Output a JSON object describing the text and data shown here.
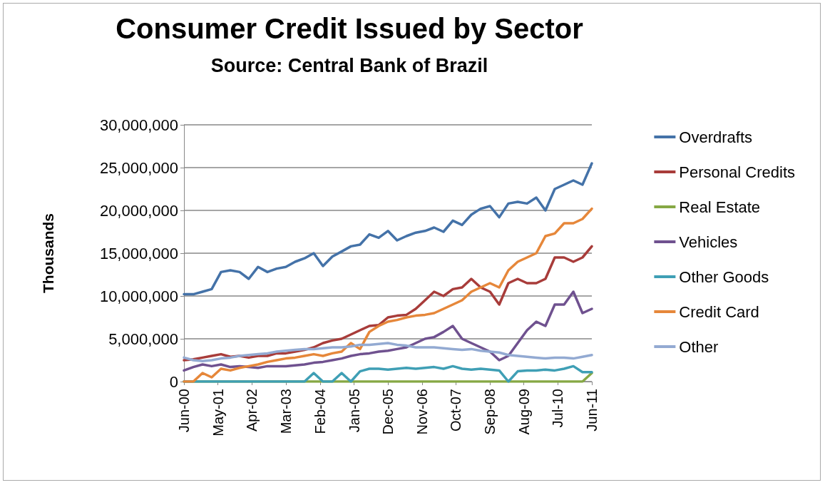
{
  "chart_data": {
    "type": "line",
    "title": "Consumer Credit Issued by Sector",
    "subtitle": "Source: Central Bank of Brazil",
    "ylabel": "Thousands",
    "x": [
      "2000-06",
      "2000-09",
      "2000-12",
      "2001-03",
      "2001-06",
      "2001-09",
      "2001-12",
      "2002-03",
      "2002-06",
      "2002-09",
      "2002-12",
      "2003-03",
      "2003-06",
      "2003-09",
      "2003-12",
      "2004-03",
      "2004-06",
      "2004-09",
      "2004-12",
      "2005-03",
      "2005-06",
      "2005-09",
      "2005-12",
      "2006-03",
      "2006-06",
      "2006-09",
      "2006-12",
      "2007-03",
      "2007-06",
      "2007-09",
      "2007-12",
      "2008-03",
      "2008-06",
      "2008-09",
      "2008-12",
      "2009-03",
      "2009-06",
      "2009-09",
      "2009-12",
      "2010-03",
      "2010-06",
      "2010-09",
      "2010-12",
      "2011-03",
      "2011-06"
    ],
    "xlim": [
      "2000-06",
      "2011-06"
    ],
    "xticks": [
      {
        "value": "2000-06",
        "label": "Jun-00"
      },
      {
        "value": "2001-05",
        "label": "May-01"
      },
      {
        "value": "2002-04",
        "label": "Apr-02"
      },
      {
        "value": "2003-03",
        "label": "Mar-03"
      },
      {
        "value": "2004-02",
        "label": "Feb-04"
      },
      {
        "value": "2005-01",
        "label": "Jan-05"
      },
      {
        "value": "2005-12",
        "label": "Dec-05"
      },
      {
        "value": "2006-11",
        "label": "Nov-06"
      },
      {
        "value": "2007-10",
        "label": "Oct-07"
      },
      {
        "value": "2008-09",
        "label": "Sep-08"
      },
      {
        "value": "2009-08",
        "label": "Aug-09"
      },
      {
        "value": "2010-07",
        "label": "Jul-10"
      },
      {
        "value": "2011-06",
        "label": "Jun-11"
      }
    ],
    "ylim": [
      0,
      30000000
    ],
    "yticks": [
      {
        "value": 0,
        "label": "0"
      },
      {
        "value": 5000000,
        "label": "5,000,000"
      },
      {
        "value": 10000000,
        "label": "10,000,000"
      },
      {
        "value": 15000000,
        "label": "15,000,000"
      },
      {
        "value": 20000000,
        "label": "20,000,000"
      },
      {
        "value": 25000000,
        "label": "25,000,000"
      },
      {
        "value": 30000000,
        "label": "30,000,000"
      }
    ],
    "grid": "y",
    "legend": "right",
    "marker": "none",
    "line_style": "solid",
    "series": [
      {
        "name": "Overdrafts",
        "color": "#4472a8",
        "values": [
          10200000,
          10200000,
          10500000,
          10800000,
          12800000,
          13000000,
          12800000,
          12000000,
          13400000,
          12800000,
          13200000,
          13400000,
          14000000,
          14400000,
          15000000,
          13500000,
          14600000,
          15200000,
          15800000,
          16000000,
          17200000,
          16800000,
          17600000,
          16500000,
          17000000,
          17400000,
          17600000,
          18000000,
          17500000,
          18800000,
          18300000,
          19500000,
          20200000,
          20500000,
          19200000,
          20800000,
          21000000,
          20800000,
          21500000,
          20000000,
          22500000,
          23000000,
          23500000,
          23000000,
          25500000
        ]
      },
      {
        "name": "Personal Credits",
        "color": "#a83c3a",
        "values": [
          2500000,
          2600000,
          2800000,
          3000000,
          3200000,
          2900000,
          3000000,
          2800000,
          3000000,
          3000000,
          3300000,
          3300000,
          3500000,
          3700000,
          4000000,
          4500000,
          4800000,
          5000000,
          5500000,
          6000000,
          6500000,
          6600000,
          7500000,
          7700000,
          7800000,
          8500000,
          9500000,
          10500000,
          10000000,
          10800000,
          11000000,
          12000000,
          11000000,
          10500000,
          9000000,
          11500000,
          12000000,
          11500000,
          11500000,
          12000000,
          14500000,
          14500000,
          14000000,
          14500000,
          15800000
        ]
      },
      {
        "name": "Real Estate",
        "color": "#86a844",
        "values": [
          0,
          0,
          0,
          0,
          0,
          0,
          0,
          0,
          0,
          0,
          0,
          0,
          0,
          0,
          0,
          0,
          0,
          0,
          0,
          0,
          0,
          0,
          0,
          0,
          0,
          0,
          0,
          0,
          0,
          0,
          0,
          0,
          0,
          0,
          0,
          0,
          0,
          0,
          0,
          0,
          0,
          0,
          0,
          0,
          1000000
        ]
      },
      {
        "name": "Vehicles",
        "color": "#6f518f",
        "values": [
          1300000,
          1700000,
          2000000,
          1800000,
          2000000,
          1700000,
          1800000,
          1700000,
          1600000,
          1800000,
          1800000,
          1800000,
          1900000,
          2000000,
          2200000,
          2300000,
          2500000,
          2700000,
          3000000,
          3200000,
          3300000,
          3500000,
          3600000,
          3800000,
          4000000,
          4500000,
          5000000,
          5200000,
          5800000,
          6500000,
          5000000,
          4500000,
          4000000,
          3500000,
          2500000,
          3000000,
          4500000,
          6000000,
          7000000,
          6500000,
          9000000,
          9000000,
          10500000,
          8000000,
          8500000
        ]
      },
      {
        "name": "Other Goods",
        "color": "#3f9fb5",
        "values": [
          0,
          0,
          0,
          0,
          0,
          0,
          0,
          0,
          0,
          0,
          0,
          0,
          0,
          0,
          1000000,
          0,
          0,
          1000000,
          0,
          1200000,
          1500000,
          1500000,
          1400000,
          1500000,
          1600000,
          1500000,
          1600000,
          1700000,
          1500000,
          1800000,
          1500000,
          1400000,
          1500000,
          1400000,
          1300000,
          0,
          1200000,
          1300000,
          1300000,
          1400000,
          1300000,
          1500000,
          1800000,
          1100000,
          1100000
        ]
      },
      {
        "name": "Credit Card",
        "color": "#e6873a",
        "values": [
          0,
          0,
          1000000,
          500000,
          1500000,
          1300000,
          1600000,
          1800000,
          2000000,
          2300000,
          2500000,
          2700000,
          2800000,
          3000000,
          3200000,
          3000000,
          3300000,
          3500000,
          4500000,
          3800000,
          5800000,
          6500000,
          7000000,
          7200000,
          7500000,
          7700000,
          7800000,
          8000000,
          8500000,
          9000000,
          9500000,
          10500000,
          11000000,
          11500000,
          11000000,
          13000000,
          14000000,
          14500000,
          15000000,
          17000000,
          17300000,
          18500000,
          18500000,
          19000000,
          20200000
        ]
      },
      {
        "name": "Other",
        "color": "#93aad2",
        "values": [
          2800000,
          2500000,
          2400000,
          2500000,
          2700000,
          2800000,
          3000000,
          3100000,
          3200000,
          3300000,
          3500000,
          3600000,
          3700000,
          3800000,
          3800000,
          3900000,
          4000000,
          4000000,
          4100000,
          4300000,
          4300000,
          4400000,
          4500000,
          4300000,
          4200000,
          4000000,
          4000000,
          4000000,
          3900000,
          3800000,
          3700000,
          3800000,
          3600000,
          3500000,
          3400000,
          3100000,
          3000000,
          2900000,
          2800000,
          2700000,
          2800000,
          2800000,
          2700000,
          2900000,
          3100000
        ]
      }
    ]
  }
}
